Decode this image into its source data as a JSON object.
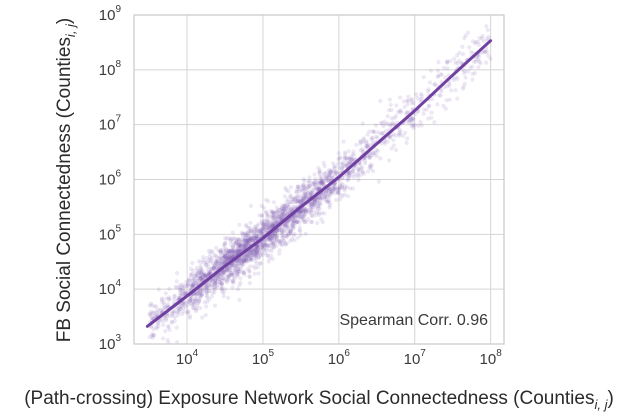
{
  "chart_data": {
    "type": "scatter",
    "x_scale": "log",
    "y_scale": "log",
    "xlim": [
      2000,
      150000000
    ],
    "ylim": [
      1000,
      1000000000
    ],
    "x_ticks": [
      {
        "value": 10000,
        "base": "10",
        "exp": "4"
      },
      {
        "value": 100000,
        "base": "10",
        "exp": "5"
      },
      {
        "value": 1000000,
        "base": "10",
        "exp": "6"
      },
      {
        "value": 10000000,
        "base": "10",
        "exp": "7"
      },
      {
        "value": 100000000,
        "base": "10",
        "exp": "8"
      }
    ],
    "y_ticks": [
      {
        "value": 1000,
        "base": "10",
        "exp": "3"
      },
      {
        "value": 10000,
        "base": "10",
        "exp": "4"
      },
      {
        "value": 100000,
        "base": "10",
        "exp": "5"
      },
      {
        "value": 1000000,
        "base": "10",
        "exp": "6"
      },
      {
        "value": 10000000,
        "base": "10",
        "exp": "7"
      },
      {
        "value": 100000000,
        "base": "10",
        "exp": "8"
      },
      {
        "value": 1000000000,
        "base": "10",
        "exp": "9"
      }
    ],
    "xlabel_main": "(Path-crossing) Exposure Network Social Connectedness (Counties",
    "xlabel_sub": "i, j",
    "xlabel_close": ")",
    "ylabel_main": "FB Social Connectedness (Counties",
    "ylabel_sub": "i, j",
    "ylabel_close": ")",
    "annotation": "Spearman Corr. 0.96",
    "grid": true,
    "scatter_color": "#7e5fb0",
    "fit_color": "#7040a0",
    "scatter_summary": "several thousand translucent points clustered tightly around the fitted curve",
    "fit_line": {
      "name": "fit",
      "points": [
        {
          "x": 3000,
          "y": 2100
        },
        {
          "x": 10000,
          "y": 7500
        },
        {
          "x": 30000,
          "y": 25000
        },
        {
          "x": 100000,
          "y": 85000
        },
        {
          "x": 300000,
          "y": 300000
        },
        {
          "x": 1000000,
          "y": 1100000
        },
        {
          "x": 3000000,
          "y": 4200000
        },
        {
          "x": 10000000,
          "y": 18000000
        },
        {
          "x": 30000000,
          "y": 75000000
        },
        {
          "x": 100000000,
          "y": 340000000
        }
      ]
    }
  }
}
